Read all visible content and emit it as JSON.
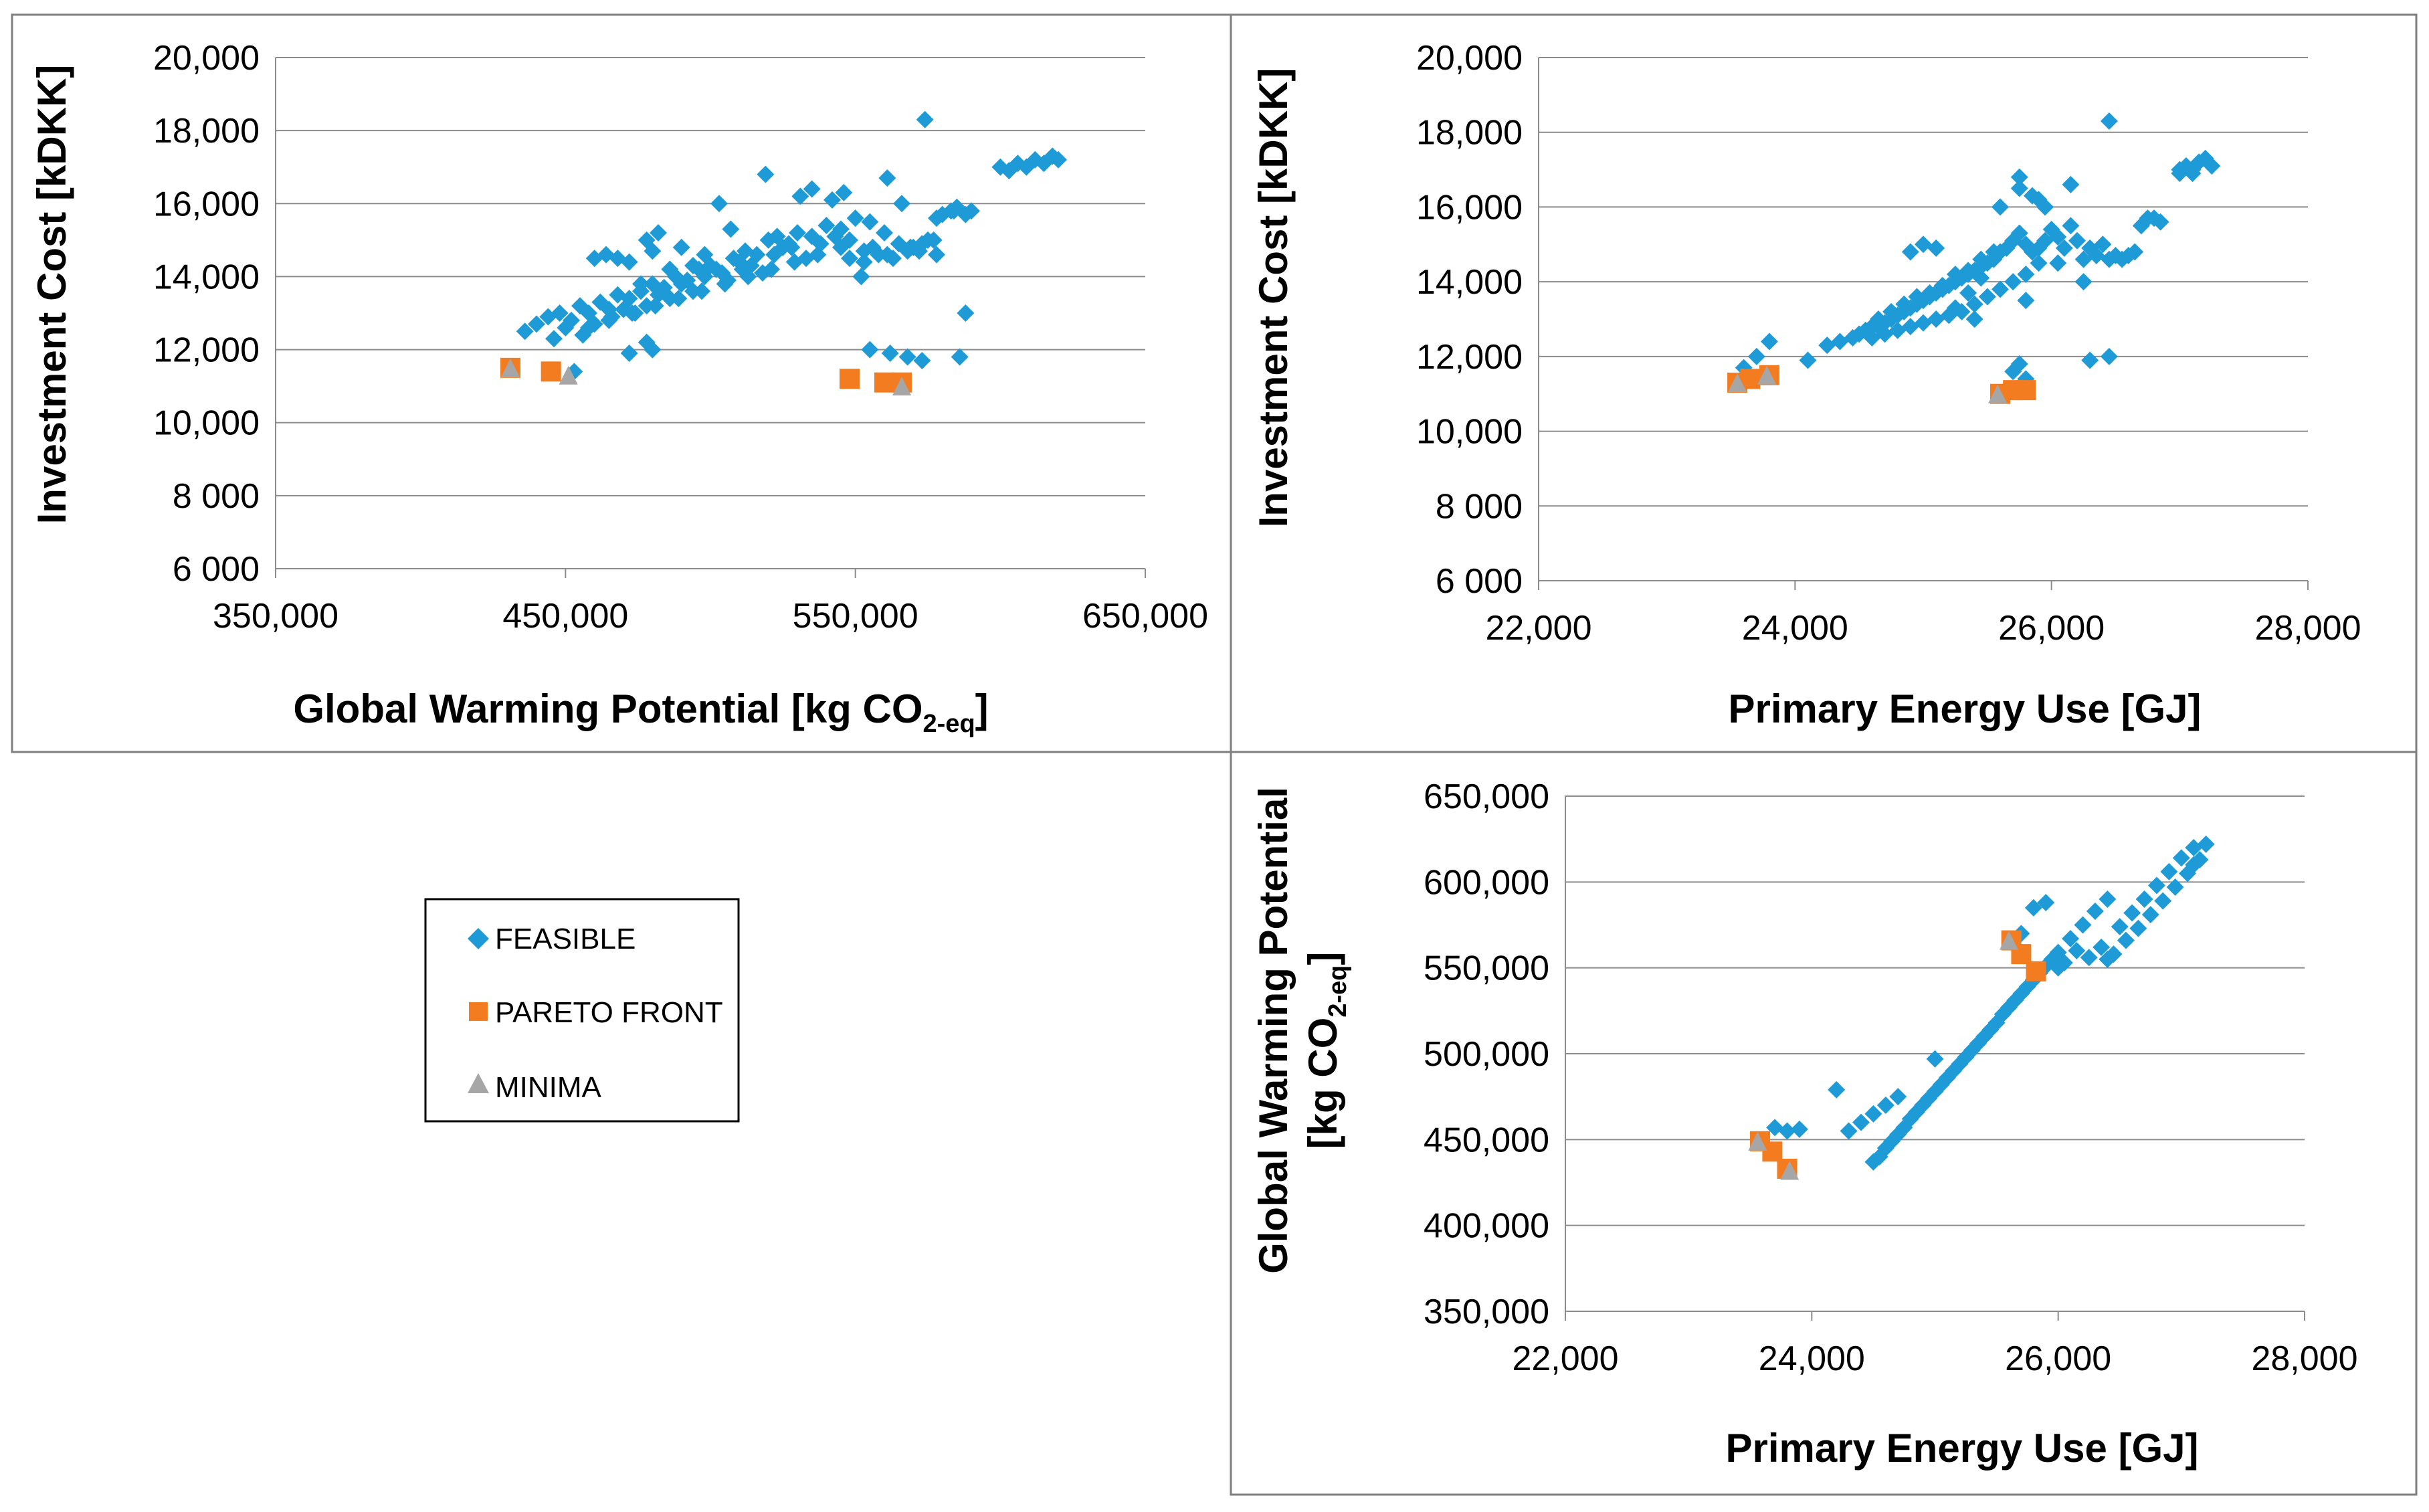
{
  "colors": {
    "feasible": "#1e9bd7",
    "pareto": "#f47c20",
    "minima": "#a6a6a6",
    "grid": "#8c8c8c",
    "frame": "#7f7f7f"
  },
  "legend": {
    "feasible": "FEASIBLE",
    "pareto": "PARETO FRONT",
    "minima": "MINIMA"
  },
  "chart_data": [
    {
      "id": "gwp_vs_cost",
      "type": "scatter",
      "title": "",
      "xlabel_parts": [
        "Global Warming Potential [kg CO",
        "2-eq",
        "]"
      ],
      "ylabel": "Investment Cost [kDKK]",
      "xlim": [
        350000,
        650000
      ],
      "ylim": [
        6000,
        20000
      ],
      "xticks": [
        350000,
        450000,
        550000,
        650000
      ],
      "xtick_labels": [
        "350,000",
        "450,000",
        "550,000",
        "650,000"
      ],
      "yticks": [
        6000,
        8000,
        10000,
        12000,
        14000,
        16000,
        18000,
        20000
      ],
      "ytick_labels": [
        "6 000",
        "8 000",
        "10,000",
        "12,000",
        "14,000",
        "16,000",
        "18,000",
        "20,000"
      ],
      "series": [
        {
          "name": "FEASIBLE",
          "marker": "diamond",
          "x": [
            436000,
            440000,
            444000,
            448000,
            452000,
            455000,
            458000,
            462000,
            465000,
            468000,
            472000,
            476000,
            480000,
            484000,
            488000,
            492000,
            496000,
            500000,
            504000,
            508000,
            512000,
            516000,
            520000,
            525000,
            530000,
            535000,
            540000,
            545000,
            550000,
            555000,
            560000,
            565000,
            570000,
            575000,
            580000,
            585000,
            590000,
            446000,
            450000,
            456000,
            460000,
            466000,
            470000,
            474000,
            478000,
            482000,
            486000,
            490000,
            494000,
            498000,
            502000,
            506000,
            510000,
            514000,
            518000,
            522000,
            528000,
            533000,
            538000,
            543000,
            548000,
            553000,
            558000,
            563000,
            568000,
            573000,
            578000,
            583000,
            460000,
            464000,
            468000,
            472000,
            476000,
            480000,
            478000,
            482000,
            486000,
            490000,
            494000,
            498000,
            503000,
            507000,
            511000,
            519000,
            523000,
            527000,
            531000,
            535000,
            542000,
            546000,
            552000,
            556000,
            561000,
            566000,
            572000,
            578000,
            584000,
            588000,
            458000,
            465000,
            473000,
            481000,
            489000,
            497000,
            505000,
            513000,
            521000,
            529000,
            537000,
            545000,
            553000,
            561000,
            569000,
            577000,
            472000,
            480000,
            555000,
            562000,
            568000,
            573000,
            586000,
            588000,
            574000,
            600000,
            603000,
            606000,
            609000,
            612000,
            615000,
            618000,
            620000,
            453000,
            478000,
            548000
          ],
          "y": [
            12500,
            12700,
            12900,
            13000,
            12800,
            13200,
            13000,
            13300,
            13100,
            13500,
            13400,
            13600,
            13800,
            13700,
            14000,
            13900,
            14200,
            14300,
            14100,
            14500,
            14700,
            14600,
            15000,
            14800,
            15200,
            15100,
            15400,
            15300,
            15600,
            15500,
            15200,
            14900,
            14800,
            15000,
            15700,
            15900,
            15800,
            12300,
            12600,
            12400,
            12700,
            12900,
            13100,
            13000,
            13200,
            13500,
            13400,
            13800,
            13600,
            14000,
            14200,
            13900,
            14400,
            14300,
            14100,
            14600,
            14800,
            14500,
            14900,
            15100,
            15000,
            14700,
            14600,
            14500,
            14700,
            14900,
            15600,
            15800,
            14500,
            14600,
            14500,
            14400,
            13800,
            14700,
            15000,
            15200,
            14200,
            14800,
            14300,
            14600,
            16000,
            15300,
            14200,
            16800,
            15100,
            14900,
            16200,
            16400,
            16100,
            16300,
            14000,
            14800,
            16700,
            16000,
            14700,
            14600,
            15800,
            15700,
            12600,
            12800,
            13000,
            13200,
            13400,
            13600,
            13800,
            14000,
            14200,
            14400,
            14600,
            14800,
            14400,
            14600,
            14800,
            15000,
            11900,
            12000,
            12000,
            11900,
            11800,
            11700,
            11800,
            13000,
            18300,
            17000,
            16900,
            17100,
            17000,
            17200,
            17100,
            17300,
            17200,
            11400,
            12200,
            14500
          ]
        },
        {
          "name": "PARETO FRONT",
          "marker": "square",
          "x": [
            431000,
            445000,
            548000,
            560000,
            566000
          ],
          "y": [
            11500,
            11400,
            11200,
            11100,
            11100
          ]
        },
        {
          "name": "MINIMA",
          "marker": "triangle",
          "x": [
            431000,
            451000,
            566000
          ],
          "y": [
            11500,
            11300,
            11000
          ]
        }
      ]
    },
    {
      "id": "pe_vs_cost",
      "type": "scatter",
      "title": "",
      "xlabel": "Primary Energy Use [GJ]",
      "ylabel": "Investment Cost [kDKK]",
      "xlim": [
        22000,
        28000
      ],
      "ylim": [
        6000,
        20000
      ],
      "xticks": [
        22000,
        24000,
        26000,
        28000
      ],
      "xtick_labels": [
        "22,000",
        "24,000",
        "26,000",
        "28,000"
      ],
      "yticks": [
        6000,
        8000,
        10000,
        12000,
        14000,
        16000,
        18000,
        20000
      ],
      "ytick_labels": [
        "6 000",
        "8 000",
        "10,000",
        "12,000",
        "14,000",
        "16,000",
        "18,000",
        "20,000"
      ],
      "series": [
        {
          "name": "FEASIBLE",
          "marker": "diamond",
          "x": [
            24100,
            24250,
            24350,
            24450,
            24500,
            24550,
            24600,
            24650,
            24700,
            24750,
            24800,
            24850,
            24900,
            24950,
            25000,
            25050,
            25100,
            25150,
            25200,
            25250,
            25300,
            25350,
            25400,
            25450,
            25500,
            25550,
            25600,
            25650,
            25700,
            25750,
            25800,
            25850,
            25900,
            25950,
            26000,
            26050,
            26100,
            26150,
            26200,
            26250,
            26300,
            26350,
            26400,
            26450,
            26500,
            26550,
            26600,
            26650,
            26700,
            26750,
            26800,
            26850,
            24600,
            24700,
            24800,
            24900,
            25000,
            25100,
            25200,
            25300,
            25400,
            25500,
            25600,
            25700,
            25800,
            25900,
            24650,
            24750,
            24850,
            24950,
            25050,
            25150,
            25250,
            25350,
            25450,
            25550,
            24900,
            25000,
            25100,
            25250,
            25350,
            25450,
            25600,
            25750,
            25850,
            25950,
            26150,
            26250,
            23600,
            23700,
            23800,
            25700,
            25750,
            25800,
            26450,
            26300,
            26450,
            27000,
            27050,
            27100,
            27150,
            27200,
            27250,
            27100,
            27000,
            25750,
            25900,
            25400,
            25800,
            26050
          ],
          "y": [
            11900,
            12300,
            12400,
            12500,
            12600,
            12700,
            12800,
            12800,
            12900,
            13000,
            13100,
            13200,
            13300,
            13400,
            13500,
            13600,
            13700,
            13800,
            13900,
            14000,
            14100,
            14200,
            14300,
            14400,
            14500,
            14600,
            14800,
            14900,
            15100,
            15300,
            15000,
            14800,
            14900,
            15100,
            15400,
            15200,
            14900,
            15500,
            15100,
            14600,
            14900,
            14700,
            15000,
            14600,
            14700,
            14600,
            14700,
            14800,
            15500,
            15700,
            15700,
            15600,
            12500,
            12600,
            12700,
            12800,
            12900,
            13000,
            13100,
            13200,
            13400,
            13600,
            13800,
            14000,
            14200,
            14500,
            13000,
            13200,
            13400,
            13600,
            13700,
            13900,
            14200,
            14300,
            14600,
            14800,
            14800,
            15000,
            14900,
            13300,
            13700,
            14100,
            16000,
            16500,
            16300,
            16000,
            16600,
            14000,
            11700,
            12000,
            12400,
            11600,
            11800,
            11400,
            18300,
            11900,
            12000,
            17000,
            17100,
            16900,
            17200,
            17300,
            17100,
            17000,
            16900,
            16800,
            16200,
            13000,
            13500,
            14500
          ]
        },
        {
          "name": "PARETO FRONT",
          "marker": "square",
          "x": [
            23550,
            23650,
            23800,
            25600,
            25700,
            25800
          ],
          "y": [
            11300,
            11400,
            11500,
            11000,
            11100,
            11100
          ]
        },
        {
          "name": "MINIMA",
          "marker": "triangle",
          "x": [
            23550,
            23780,
            25580
          ],
          "y": [
            11300,
            11500,
            11000
          ]
        }
      ]
    },
    {
      "id": "pe_vs_gwp",
      "type": "scatter",
      "title": "",
      "xlabel": "Primary Energy Use [GJ]",
      "ylabel_parts": [
        "Global Warming Potential",
        "[kg CO",
        "2-eq",
        "]"
      ],
      "xlim": [
        22000,
        28000
      ],
      "ylim": [
        350000,
        650000
      ],
      "xticks": [
        22000,
        24000,
        26000,
        28000
      ],
      "xtick_labels": [
        "22,000",
        "24,000",
        "26,000",
        "28,000"
      ],
      "yticks": [
        350000,
        400000,
        450000,
        500000,
        550000,
        600000,
        650000
      ],
      "ytick_labels": [
        "350,000",
        "400,000",
        "450,000",
        "500,000",
        "550,000",
        "600,000",
        "650,000"
      ],
      "series": [
        {
          "name": "FEASIBLE",
          "marker": "diamond",
          "x": [
            24500,
            24600,
            24700,
            24800,
            24900,
            25000,
            25100,
            25200,
            25300,
            25400,
            25500,
            25600,
            25700,
            25800,
            25900,
            26000,
            26100,
            26200,
            26300,
            26400,
            26500,
            26600,
            26700,
            26800,
            26900,
            27000,
            27100,
            27200,
            24550,
            24650,
            24750,
            24850,
            24950,
            25050,
            25150,
            25250,
            25350,
            25450,
            25550,
            25650,
            25750,
            25850,
            25950,
            26050,
            26150,
            26250,
            26350,
            26450,
            26550,
            26650,
            26750,
            26850,
            26950,
            27050,
            27150,
            24200,
            24300,
            24400,
            24500,
            24600,
            24700,
            25000,
            23700,
            23800,
            23900,
            25700,
            25800,
            25900,
            26000,
            26400,
            27100
          ],
          "y": [
            437000,
            445000,
            453000,
            462000,
            470000,
            478000,
            486000,
            494000,
            502000,
            510000,
            518000,
            527000,
            535000,
            543000,
            551000,
            559000,
            567000,
            575000,
            583000,
            590000,
            574000,
            582000,
            590000,
            598000,
            606000,
            614000,
            620000,
            622000,
            440000,
            449000,
            457000,
            466000,
            474000,
            482000,
            490000,
            498000,
            506000,
            514000,
            523000,
            531000,
            539000,
            547000,
            555000,
            553000,
            560000,
            556000,
            562000,
            558000,
            566000,
            573000,
            581000,
            589000,
            597000,
            605000,
            613000,
            479000,
            455000,
            460000,
            465000,
            470000,
            475000,
            497000,
            457000,
            455000,
            456000,
            570000,
            585000,
            588000,
            550000,
            555000,
            610000
          ]
        },
        {
          "name": "PARETO FRONT",
          "marker": "square",
          "x": [
            23580,
            23680,
            23800,
            25620,
            25700,
            25820
          ],
          "y": [
            449000,
            443000,
            433000,
            566000,
            558000,
            548000
          ]
        },
        {
          "name": "MINIMA",
          "marker": "triangle",
          "x": [
            23560,
            23820,
            25600
          ],
          "y": [
            449000,
            432000,
            566000
          ]
        }
      ]
    }
  ]
}
